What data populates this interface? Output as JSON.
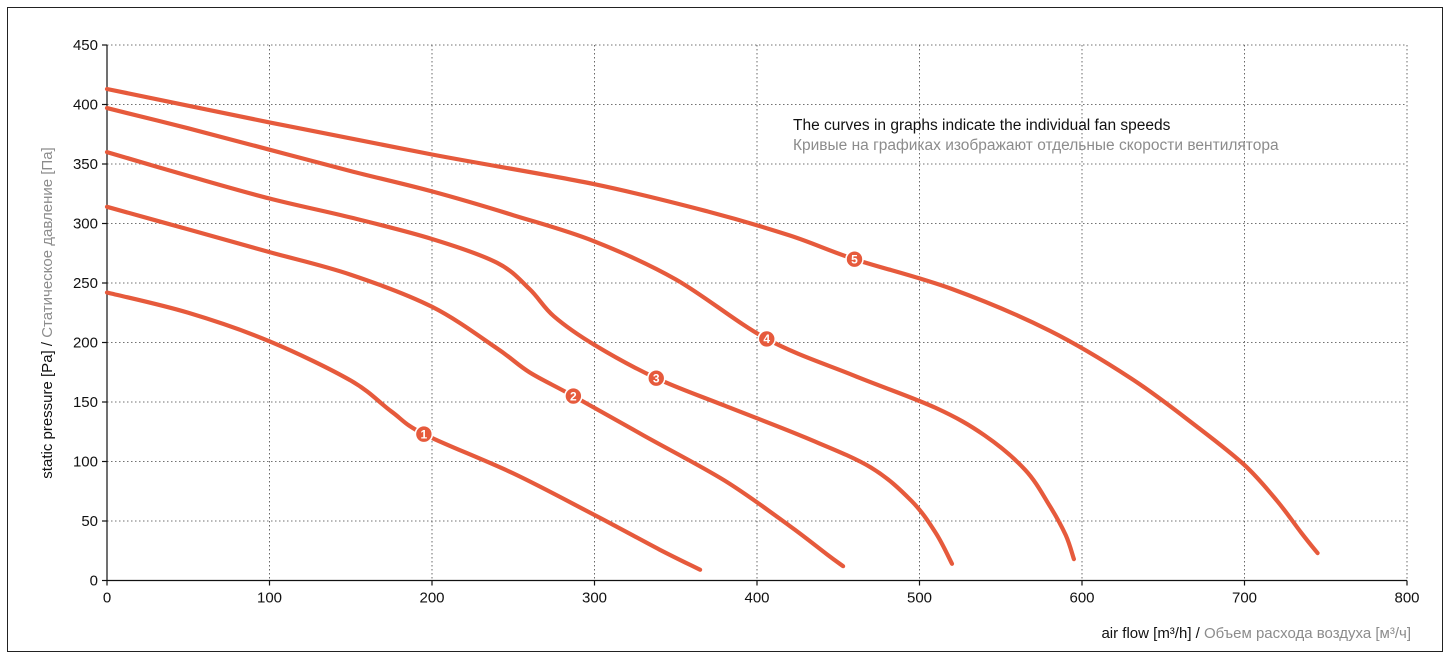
{
  "colors": {
    "curve": "#e65a3c",
    "primary_text": "#111111",
    "secondary_text": "#8c8c8c"
  },
  "chart_data": {
    "type": "line",
    "xlim": [
      0,
      800
    ],
    "ylim": [
      0,
      450
    ],
    "x_ticks": [
      0,
      100,
      200,
      300,
      400,
      500,
      600,
      700,
      800
    ],
    "y_ticks": [
      0,
      50,
      100,
      150,
      200,
      250,
      300,
      350,
      400,
      450
    ],
    "x_tick_labels": [
      "0",
      "100",
      "200",
      "300",
      "400",
      "500",
      "600",
      "700",
      "800"
    ],
    "y_tick_labels": [
      "0",
      "50",
      "100",
      "150",
      "200",
      "250",
      "300",
      "350",
      "400",
      "450"
    ],
    "grid": true,
    "xlabel": {
      "en": "air flow [m³/h]",
      "sep": " / ",
      "ru": "Объем расхода воздуха [м³/ч]"
    },
    "ylabel": {
      "en": "static pressure [Pa]",
      "sep": " / ",
      "ru": "Статическое давление [Па]"
    },
    "annotation": {
      "en": "The curves in graphs indicate the individual fan speeds",
      "ru": "Кривые на графиках изображают отдельные скорости вентилятора"
    },
    "series": [
      {
        "marker_label": "1",
        "marker": [
          195,
          123
        ],
        "points": [
          [
            0,
            242
          ],
          [
            50,
            225
          ],
          [
            100,
            201
          ],
          [
            150,
            168
          ],
          [
            175,
            142
          ],
          [
            195,
            123
          ],
          [
            250,
            90
          ],
          [
            300,
            55
          ],
          [
            340,
            26
          ],
          [
            365,
            9
          ]
        ]
      },
      {
        "marker_label": "2",
        "marker": [
          287,
          155
        ],
        "points": [
          [
            0,
            314
          ],
          [
            50,
            295
          ],
          [
            100,
            276
          ],
          [
            150,
            257
          ],
          [
            200,
            230
          ],
          [
            240,
            195
          ],
          [
            260,
            175
          ],
          [
            287,
            155
          ],
          [
            330,
            122
          ],
          [
            380,
            84
          ],
          [
            420,
            46
          ],
          [
            443,
            22
          ],
          [
            453,
            12
          ]
        ]
      },
      {
        "marker_label": "3",
        "marker": [
          338,
          170
        ],
        "points": [
          [
            0,
            360
          ],
          [
            50,
            340
          ],
          [
            100,
            321
          ],
          [
            150,
            305
          ],
          [
            200,
            287
          ],
          [
            240,
            267
          ],
          [
            260,
            245
          ],
          [
            275,
            222
          ],
          [
            300,
            198
          ],
          [
            338,
            170
          ],
          [
            380,
            147
          ],
          [
            430,
            120
          ],
          [
            470,
            95
          ],
          [
            495,
            67
          ],
          [
            510,
            40
          ],
          [
            520,
            14
          ]
        ]
      },
      {
        "marker_label": "4",
        "marker": [
          406,
          203
        ],
        "points": [
          [
            0,
            397
          ],
          [
            50,
            380
          ],
          [
            100,
            362
          ],
          [
            150,
            344
          ],
          [
            200,
            327
          ],
          [
            250,
            307
          ],
          [
            300,
            285
          ],
          [
            350,
            253
          ],
          [
            406,
            203
          ],
          [
            460,
            172
          ],
          [
            510,
            145
          ],
          [
            540,
            122
          ],
          [
            565,
            93
          ],
          [
            580,
            63
          ],
          [
            590,
            38
          ],
          [
            595,
            18
          ]
        ]
      },
      {
        "marker_label": "5",
        "marker": [
          460,
          270
        ],
        "points": [
          [
            0,
            413
          ],
          [
            100,
            385
          ],
          [
            200,
            358
          ],
          [
            300,
            333
          ],
          [
            370,
            310
          ],
          [
            420,
            290
          ],
          [
            460,
            270
          ],
          [
            520,
            245
          ],
          [
            580,
            210
          ],
          [
            630,
            170
          ],
          [
            670,
            130
          ],
          [
            700,
            97
          ],
          [
            720,
            67
          ],
          [
            735,
            40
          ],
          [
            745,
            23
          ]
        ]
      }
    ]
  }
}
